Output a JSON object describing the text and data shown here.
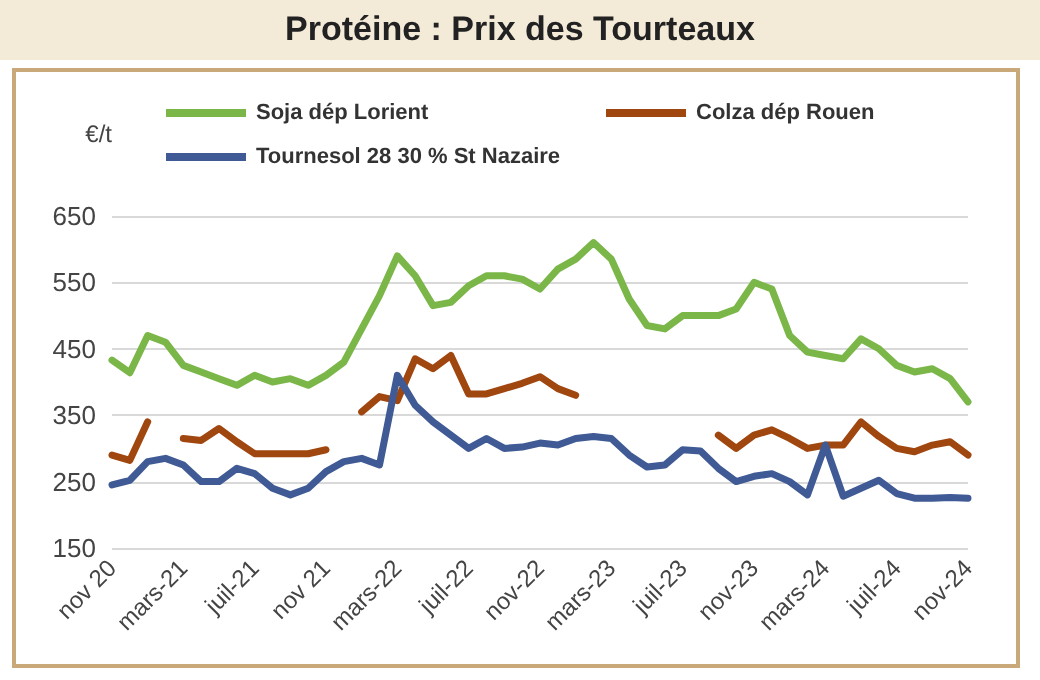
{
  "chart_data": {
    "type": "line",
    "title": "Protéine : Prix des Tourteaux",
    "ylabel": "€/t",
    "categories": [
      "nov 20",
      null,
      null,
      null,
      "mars-21",
      null,
      null,
      null,
      "juil-21",
      null,
      null,
      null,
      "nov 21",
      null,
      null,
      null,
      "mars-22",
      null,
      null,
      null,
      "juil-22",
      null,
      null,
      null,
      "nov-22",
      null,
      null,
      null,
      "mars-23",
      null,
      null,
      null,
      "juil-23",
      null,
      null,
      null,
      "nov-23",
      null,
      null,
      null,
      "mars-24",
      null,
      null,
      null,
      "juil-24",
      null,
      null,
      null,
      "nov-24"
    ],
    "series": [
      {
        "name": "Soja dép Lorient",
        "color": "#7ab648",
        "values": [
          433,
          414,
          470,
          460,
          425,
          415,
          405,
          395,
          410,
          400,
          405,
          395,
          410,
          430,
          480,
          530,
          590,
          560,
          515,
          520,
          545,
          560,
          560,
          555,
          540,
          570,
          585,
          610,
          585,
          525,
          485,
          480,
          500,
          500,
          500,
          510,
          550,
          540,
          470,
          445,
          440,
          435,
          465,
          450,
          425,
          415,
          420,
          405,
          370
        ]
      },
      {
        "name": "Colza dép Rouen",
        "color": "#a0460f",
        "values": [
          290,
          282,
          340,
          null,
          315,
          312,
          330,
          310,
          292,
          292,
          292,
          292,
          298,
          null,
          355,
          378,
          372,
          435,
          420,
          440,
          382,
          382,
          390,
          398,
          408,
          390,
          380,
          null,
          null,
          null,
          null,
          null,
          null,
          null,
          320,
          300,
          320,
          328,
          315,
          300,
          305,
          305,
          340,
          318,
          300,
          295,
          305,
          310,
          290
        ]
      },
      {
        "name": "Tournesol 28 30 % St Nazaire",
        "color": "#3f5a94",
        "values": [
          245,
          252,
          280,
          285,
          275,
          250,
          250,
          270,
          262,
          240,
          230,
          240,
          265,
          280,
          285,
          275,
          410,
          365,
          340,
          320,
          300,
          315,
          300,
          302,
          308,
          305,
          315,
          318,
          315,
          290,
          272,
          275,
          298,
          296,
          270,
          250,
          258,
          262,
          250,
          230,
          305,
          228,
          240,
          252,
          232,
          225,
          225,
          226,
          225
        ]
      }
    ],
    "ylim": [
      150,
      650
    ],
    "yticks": [
      150,
      250,
      350,
      450,
      550,
      650
    ],
    "grid": "y",
    "legend": "top",
    "marker": "none",
    "line_style": "solid"
  }
}
